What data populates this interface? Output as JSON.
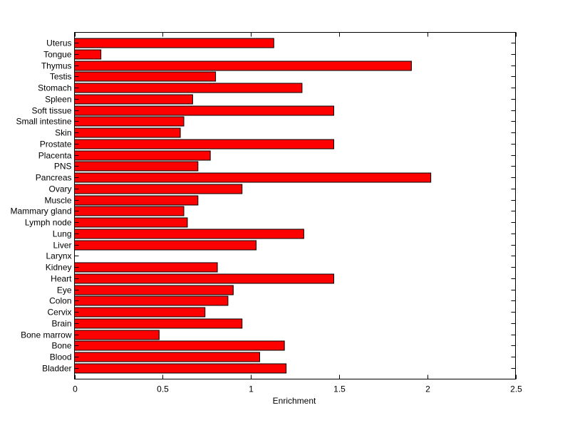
{
  "chart_data": {
    "type": "bar",
    "orientation": "horizontal",
    "title": "",
    "xlabel": "Enrichment",
    "ylabel": "",
    "xlim": [
      0,
      2.5
    ],
    "xticks": [
      "0",
      "0.5",
      "1",
      "1.5",
      "2",
      "2.5"
    ],
    "xtick_values": [
      0,
      0.5,
      1,
      1.5,
      2,
      2.5
    ],
    "grid": false,
    "bar_color": "#ff0000",
    "categories": [
      "Uterus",
      "Tongue",
      "Thymus",
      "Testis",
      "Stomach",
      "Spleen",
      "Soft tissue",
      "Small intestine",
      "Skin",
      "Prostate",
      "Placenta",
      "PNS",
      "Pancreas",
      "Ovary",
      "Muscle",
      "Mammary gland",
      "Lymph node",
      "Lung",
      "Liver",
      "Larynx",
      "Kidney",
      "Heart",
      "Eye",
      "Colon",
      "Cervix",
      "Brain",
      "Bone marrow",
      "Bone",
      "Blood",
      "Bladder"
    ],
    "values": [
      1.13,
      0.15,
      1.91,
      0.8,
      1.29,
      0.67,
      1.47,
      0.62,
      0.6,
      1.47,
      0.77,
      0.7,
      2.02,
      0.95,
      0.7,
      0.62,
      0.64,
      1.3,
      1.03,
      0,
      0.81,
      1.47,
      0.9,
      0.87,
      0.74,
      0.95,
      0.48,
      1.19,
      1.05,
      1.2
    ]
  }
}
